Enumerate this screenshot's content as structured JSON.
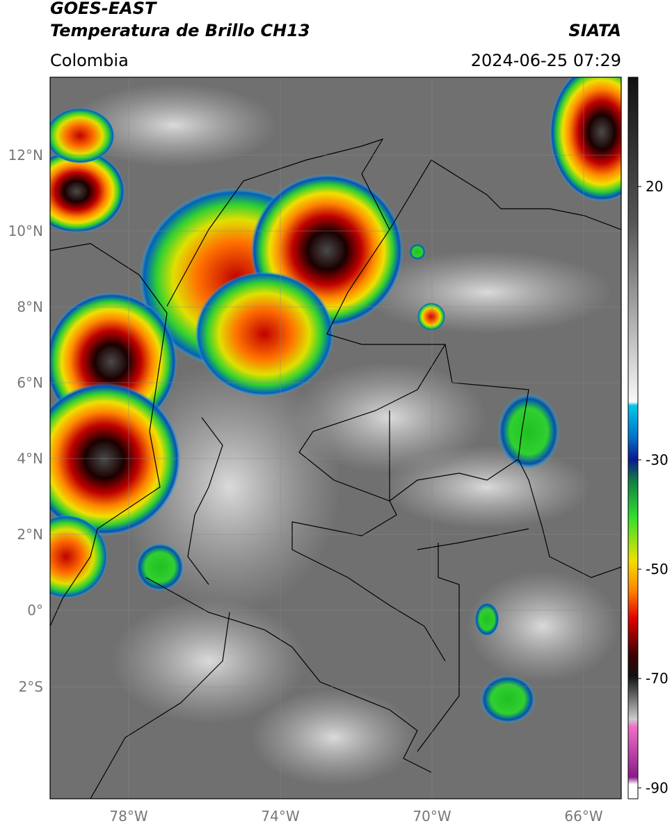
{
  "header": {
    "title": "GOES-EAST",
    "subtitle": "Temperatura de Brillo CH13",
    "source": "SIATA",
    "region": "Colombia",
    "datetime": "2024-06-25 07:29"
  },
  "map": {
    "lat_labels": [
      "12°N",
      "10°N",
      "8°N",
      "6°N",
      "4°N",
      "2°N",
      "0°",
      "2°S"
    ],
    "lon_labels": [
      "78°W",
      "74°W",
      "70°W",
      "66°W"
    ]
  },
  "colorbar": {
    "lim": [
      -92,
      40
    ],
    "ticks": [
      20,
      -30,
      -50,
      -70,
      -90
    ]
  }
}
